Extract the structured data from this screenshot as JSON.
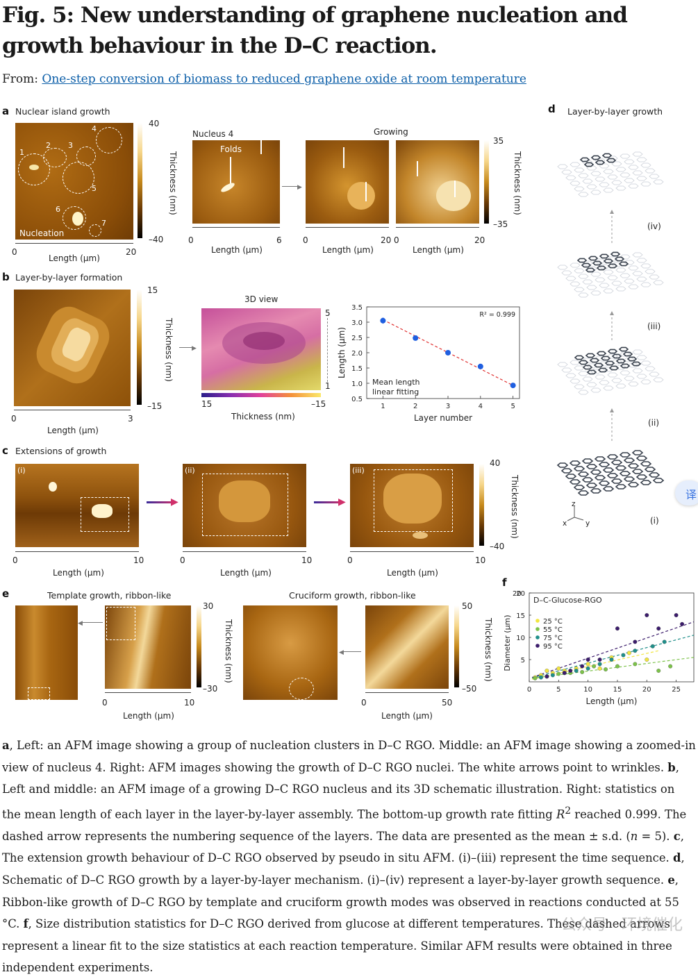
{
  "figure": {
    "title": "Fig. 5: New understanding of graphene nucleation and growth behaviour in the D–C reaction.",
    "from_prefix": "From:",
    "from_link": "One-step conversion of biomass to reduced graphene oxide at room temperature"
  },
  "panel_a": {
    "label": "a",
    "title": "Nuclear island growth",
    "nucleation_label": "Nucleation",
    "nucleus_numbers": [
      "1",
      "2",
      "3",
      "4",
      "5",
      "6",
      "7"
    ],
    "nucleus4_title": "Nucleus 4",
    "folds_label": "Folds",
    "growing_title": "Growing",
    "colorbar1": {
      "max": "40",
      "min": "–40",
      "label": "Thickness (nm)"
    },
    "colorbar2": {
      "max": "35",
      "min": "–35",
      "label": "Thickness (nm)"
    },
    "axes": [
      {
        "min": "0",
        "max": "20",
        "label": "Length (μm)"
      },
      {
        "min": "0",
        "max": "6",
        "label": "Length (μm)"
      },
      {
        "min": "0",
        "max": "20",
        "label": "Length (μm)"
      },
      {
        "min": "0",
        "max": "20",
        "label": "Length (μm)"
      }
    ]
  },
  "panel_b": {
    "label": "b",
    "title": "Layer-by-layer formation",
    "colorbar": {
      "max": "15",
      "min": "–15",
      "label": "Thickness (nm)"
    },
    "axis": {
      "min": "0",
      "max": "3",
      "label": "Length (μm)"
    },
    "view3d_title": "3D view",
    "view3d_layers": {
      "top": "5",
      "bottom": "1"
    },
    "view3d_cbar": {
      "left": "15",
      "right": "–15",
      "label": "Thickness (nm)"
    }
  },
  "chart_data": {
    "type": "scatter",
    "title": "",
    "xlabel": "Layer number",
    "ylabel": "Length (μm)",
    "xlim": [
      0.5,
      5.2
    ],
    "ylim": [
      0.5,
      3.5
    ],
    "x_ticks": [
      "1",
      "2",
      "3",
      "4",
      "5"
    ],
    "y_ticks": [
      "0.5",
      "1.0",
      "1.5",
      "2.0",
      "2.5",
      "3.0",
      "3.5"
    ],
    "annotation": "R² = 0.999",
    "legend": [
      "Mean length",
      "linear fitting"
    ],
    "series": [
      {
        "name": "Mean length",
        "x": [
          1,
          2,
          3,
          4,
          5
        ],
        "y": [
          3.05,
          2.48,
          2.0,
          1.55,
          0.93
        ],
        "err": [
          0.1,
          0.08,
          0.05,
          0.05,
          0.04
        ]
      }
    ],
    "fit": {
      "x": [
        1,
        5
      ],
      "y": [
        3.08,
        0.93
      ]
    }
  },
  "panel_c": {
    "label": "c",
    "title": "Extensions of growth",
    "frames": [
      "(i)",
      "(ii)",
      "(iii)"
    ],
    "colorbar": {
      "max": "40",
      "min": "–40",
      "label": "Thickness (nm)"
    },
    "axes": [
      {
        "min": "0",
        "max": "10",
        "label": "Length (μm)"
      },
      {
        "min": "0",
        "max": "10",
        "label": "Length (μm)"
      },
      {
        "min": "0",
        "max": "10",
        "label": "Length (μm)"
      }
    ]
  },
  "panel_d": {
    "label": "d",
    "title": "Layer-by-layer growth",
    "stages": [
      "(iv)",
      "(iii)",
      "(ii)",
      "(i)"
    ],
    "axes_labels": {
      "z": "z",
      "x": "x",
      "y": "y"
    }
  },
  "panel_e": {
    "label": "e",
    "template_title": "Template growth, ribbon-like",
    "cruciform_title": "Cruciform growth, ribbon-like",
    "colorbar1": {
      "max": "30",
      "min": "–30",
      "label": "Thickness (nm)"
    },
    "colorbar2": {
      "max": "50",
      "min": "–50",
      "label": "Thickness (nm)"
    },
    "axis1": {
      "min": "0",
      "max": "10",
      "label": "Length (μm)"
    },
    "axis2": {
      "min": "0",
      "max": "50",
      "label": "Length (μm)"
    }
  },
  "panel_f": {
    "label": "f",
    "title": "D–C-Glucose-RGO",
    "xlabel": "Length (μm)",
    "ylabel": "Diameter (μm)",
    "x_ticks": [
      "0",
      "5",
      "10",
      "15",
      "20",
      "25"
    ],
    "y_ticks": [
      "5",
      "10",
      "15",
      "20"
    ],
    "legend": [
      {
        "name": "25 °C",
        "color": "#f2e640"
      },
      {
        "name": "55 °C",
        "color": "#7cc24a"
      },
      {
        "name": "75 °C",
        "color": "#1f8f8a"
      },
      {
        "name": "95 °C",
        "color": "#3b1c6b"
      }
    ]
  },
  "caption": {
    "html_parts": [
      {
        "b": "a"
      },
      {
        "t": ", Left: an AFM image showing a group of nucleation clusters in D–C RGO. Middle: an AFM image showing a zoomed-in view of nucleus 4. Right: AFM images showing the growth of D–C RGO nuclei. The white arrows point to wrinkles. "
      },
      {
        "b": "b"
      },
      {
        "t": ", Left and middle: an AFM image of a growing D–C RGO nucleus and its 3D schematic illustration. Right: statistics on the mean length of each layer in the layer-by-layer assembly. The bottom-up growth rate fitting "
      },
      {
        "i": "R"
      },
      {
        "sup": "2"
      },
      {
        "t": " reached 0.999. The dashed arrow represents the numbering sequence of the layers. The data are presented as the mean ± s.d. ("
      },
      {
        "i": "n"
      },
      {
        "t": " = 5). "
      },
      {
        "b": "c"
      },
      {
        "t": ", The extension growth behaviour of D–C RGO observed by pseudo in situ AFM. (i)–(iii) represent the time sequence. "
      },
      {
        "b": "d"
      },
      {
        "t": ", Schematic of D–C RGO growth by a layer-by-layer mechanism. (i)–(iv) represent a layer-by-layer growth sequence. "
      },
      {
        "b": "e"
      },
      {
        "t": ", Ribbon-like growth of D–C RGO by template and cruciform growth modes was observed in reactions conducted at 55 °C. "
      },
      {
        "b": "f"
      },
      {
        "t": ", Size distribution statistics for D–C RGO derived from glucose at different temperatures. These dashed arrows represent a linear fit to the size statistics at each reaction temperature. Similar AFM results were obtained in three independent experiments."
      }
    ]
  },
  "watermark": "公众号 · 环境催化",
  "translate_button": "译"
}
